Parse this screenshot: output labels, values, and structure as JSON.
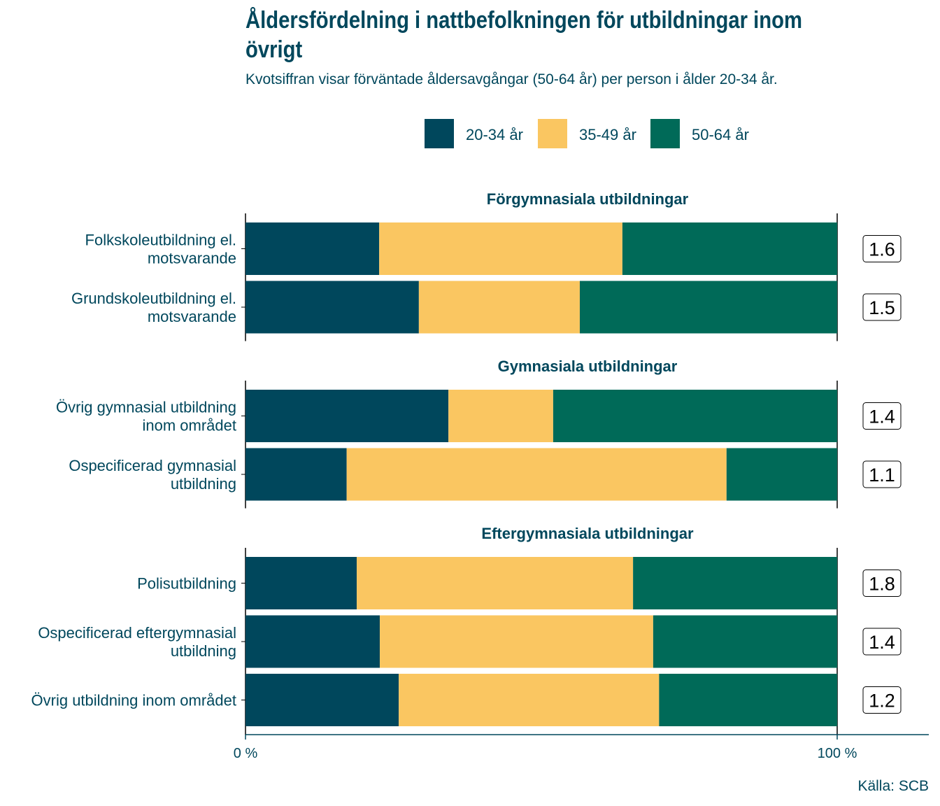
{
  "title": "Åldersfördelning i nattbefolkningen för utbildningar inom övrigt",
  "subtitle": "Kvotsiffran visar förväntade åldersavgångar (50-64 år) per person i ålder 20-34 år.",
  "source": "Källa: SCB",
  "chart_data": {
    "type": "bar",
    "orientation": "horizontal",
    "stacked": "percent",
    "legend_position": "top",
    "colors": {
      "20-34 år": "#00475c",
      "35-49 år": "#fac661",
      "50-64 år": "#006a58"
    },
    "series_names": [
      "20-34 år",
      "35-49 år",
      "50-64 år"
    ],
    "xlim": [
      0,
      100
    ],
    "x_ticks": [
      "0 %",
      "100 %"
    ],
    "grid": false,
    "facets": [
      {
        "title": "Förgymnasiala utbildningar",
        "rows": [
          {
            "label": [
              "Folkskoleutbildning el.",
              "motsvarande"
            ],
            "values": [
              22.6,
              41.1,
              36.3
            ],
            "ratio": "1.6"
          },
          {
            "label": [
              "Grundskoleutbildning el.",
              "motsvarande"
            ],
            "values": [
              29.3,
              27.2,
              43.5
            ],
            "ratio": "1.5"
          }
        ]
      },
      {
        "title": "Gymnasiala utbildningar",
        "rows": [
          {
            "label": [
              "Övrig gymnasial utbildning",
              "inom området"
            ],
            "values": [
              34.3,
              17.7,
              48.0
            ],
            "ratio": "1.4"
          },
          {
            "label": [
              "Ospecificerad gymnasial",
              "utbildning"
            ],
            "values": [
              17.1,
              64.2,
              18.7
            ],
            "ratio": "1.1"
          }
        ]
      },
      {
        "title": "Eftergymnasiala utbildningar",
        "rows": [
          {
            "label": [
              "Polisutbildning"
            ],
            "values": [
              18.8,
              46.7,
              34.5
            ],
            "ratio": "1.8"
          },
          {
            "label": [
              "Ospecificerad eftergymnasial",
              "utbildning"
            ],
            "values": [
              22.7,
              46.2,
              31.1
            ],
            "ratio": "1.4"
          },
          {
            "label": [
              "Övrig utbildning inom området"
            ],
            "values": [
              25.9,
              44.0,
              30.1
            ],
            "ratio": "1.2"
          }
        ]
      }
    ]
  }
}
